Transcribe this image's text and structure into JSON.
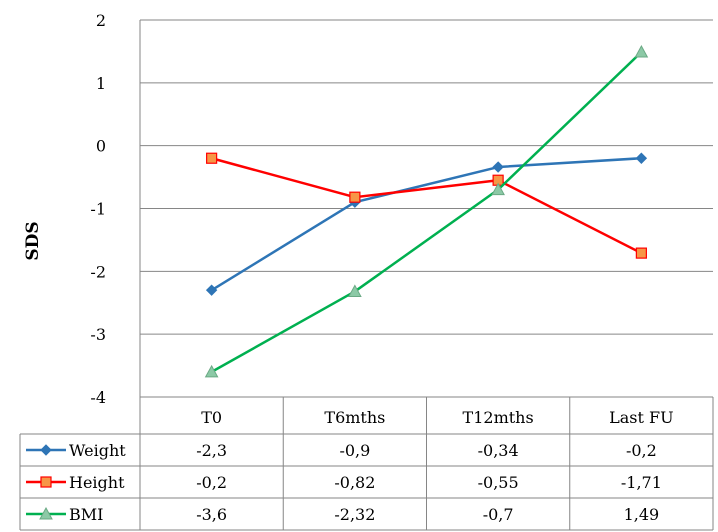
{
  "chart_data": {
    "type": "line",
    "title": "",
    "xlabel": "",
    "ylabel": "SDS",
    "ylim": [
      -4,
      2
    ],
    "yticks": [
      "2",
      "1",
      "0",
      "-1",
      "-2",
      "-3",
      "-4"
    ],
    "categories": [
      "T0",
      "T6mths",
      "T12mths",
      "Last FU"
    ],
    "grid": true,
    "legend": "data-table",
    "series": [
      {
        "name": "Weight",
        "values": [
          -2.3,
          -0.9,
          -0.34,
          -0.2
        ],
        "labels": [
          "-2,3",
          "-0,9",
          "-0,34",
          "-0,2"
        ],
        "color": "#2e75b6",
        "marker": "diamond"
      },
      {
        "name": "Height",
        "values": [
          -0.2,
          -0.82,
          -0.55,
          -1.71
        ],
        "labels": [
          "-0,2",
          "-0,82",
          "-0,55",
          "-1,71"
        ],
        "color": "#ff0000",
        "marker": "square",
        "marker_fill": "#f79646"
      },
      {
        "name": "BMI",
        "values": [
          -3.6,
          -2.32,
          -0.7,
          1.49
        ],
        "labels": [
          "-3,6",
          "-2,32",
          "-0,7",
          "1,49"
        ],
        "color": "#00b050",
        "marker": "triangle",
        "marker_fill": "#8cc9a6"
      }
    ]
  }
}
